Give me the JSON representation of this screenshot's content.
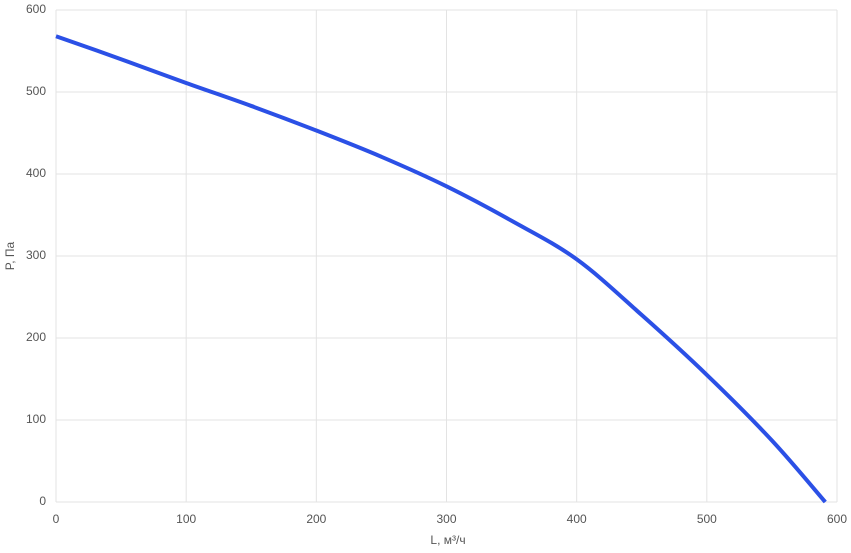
{
  "chart_data": {
    "type": "line",
    "x_label": "L, м³/ч",
    "y_label": "P, Па",
    "x": [
      0,
      50,
      100,
      150,
      200,
      250,
      300,
      350,
      400,
      450,
      500,
      550,
      591
    ],
    "series": [
      {
        "color": "#2b50e6",
        "values": [
          568,
          540,
          511,
          483,
          453,
          421,
          385,
          343,
          296,
          228,
          155,
          75,
          0
        ]
      }
    ],
    "xlim": [
      0,
      600
    ],
    "xticks": [
      0,
      100,
      200,
      300,
      400,
      500,
      600
    ],
    "ylim": [
      0,
      600
    ],
    "yticks": [
      0,
      100,
      200,
      300,
      400,
      500,
      600
    ],
    "grid": true
  }
}
